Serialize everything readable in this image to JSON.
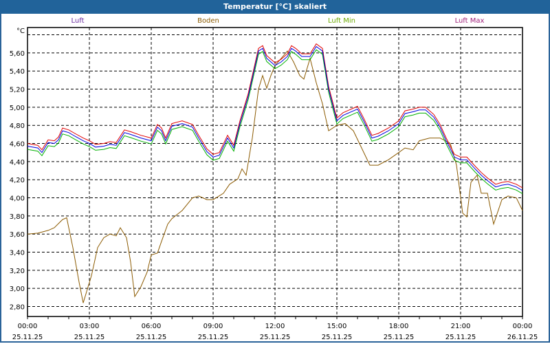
{
  "window": {
    "title": "Temperatur [°C] skaliert"
  },
  "chart_data": {
    "type": "line",
    "title": "Temperatur [°C] skaliert",
    "ylabel": "°C",
    "xlabel": "",
    "ylim": [
      2.69,
      5.88
    ],
    "xlim_hours": [
      0,
      24
    ],
    "grid": true,
    "legend_placement": "top",
    "yticks": [
      {
        "v": 2.8,
        "label": "2,80"
      },
      {
        "v": 3.0,
        "label": "3,00"
      },
      {
        "v": 3.2,
        "label": "3,20"
      },
      {
        "v": 3.4,
        "label": "3,40"
      },
      {
        "v": 3.6,
        "label": "3,60"
      },
      {
        "v": 3.8,
        "label": "3,80"
      },
      {
        "v": 4.0,
        "label": "4,00"
      },
      {
        "v": 4.2,
        "label": "4,20"
      },
      {
        "v": 4.4,
        "label": "4,40"
      },
      {
        "v": 4.6,
        "label": "4,60"
      },
      {
        "v": 4.8,
        "label": "4,80"
      },
      {
        "v": 5.0,
        "label": "5,00"
      },
      {
        "v": 5.2,
        "label": "5,20"
      },
      {
        "v": 5.4,
        "label": "5,40"
      },
      {
        "v": 5.6,
        "label": "5,60"
      },
      {
        "v": 5.8,
        "label": ""
      }
    ],
    "xticks": [
      {
        "h": 0,
        "time": "00:00",
        "date": "25.11.25"
      },
      {
        "h": 3,
        "time": "03:00",
        "date": "25.11.25"
      },
      {
        "h": 6,
        "time": "06:00",
        "date": "25.11.25"
      },
      {
        "h": 9,
        "time": "09:00",
        "date": "25.11.25"
      },
      {
        "h": 12,
        "time": "12:00",
        "date": "25.11.25"
      },
      {
        "h": 15,
        "time": "15:00",
        "date": "25.11.25"
      },
      {
        "h": 18,
        "time": "18:00",
        "date": "25.11.25"
      },
      {
        "h": 21,
        "time": "21:00",
        "date": "25.11.25"
      },
      {
        "h": 24,
        "time": "00:00",
        "date": "26.11.25"
      }
    ],
    "series": [
      {
        "name": "Boden",
        "color": "#8b5a00",
        "offset": 0,
        "x": [
          0,
          0.5,
          1,
          1.3,
          1.7,
          1.9,
          2.2,
          2.5,
          2.7,
          2.9,
          3.1,
          3.4,
          3.7,
          4,
          4.3,
          4.5,
          4.8,
          5,
          5.2,
          5.5,
          5.8,
          6,
          6.3,
          6.5,
          6.8,
          7,
          7.5,
          8,
          8.3,
          8.7,
          9,
          9.5,
          9.8,
          10.2,
          10.4,
          10.6,
          10.9,
          11.2,
          11.4,
          11.6,
          11.8,
          12,
          12.3,
          12.6,
          12.9,
          13.2,
          13.4,
          13.7,
          14,
          14.3,
          14.6,
          15,
          15.4,
          15.8,
          16.2,
          16.6,
          17,
          17.5,
          18,
          18.3,
          18.7,
          19,
          19.5,
          20,
          20.5,
          20.8,
          21.1,
          21.3,
          21.5,
          21.8,
          22,
          22.3,
          22.6,
          23,
          23.3,
          23.7,
          24
        ],
        "y": [
          3.6,
          3.61,
          3.64,
          3.67,
          3.76,
          3.78,
          3.45,
          3.07,
          2.84,
          2.99,
          3.14,
          3.45,
          3.56,
          3.6,
          3.58,
          3.67,
          3.56,
          3.29,
          2.91,
          3.02,
          3.18,
          3.37,
          3.39,
          3.52,
          3.71,
          3.77,
          3.86,
          4.0,
          4.02,
          3.98,
          3.98,
          4.05,
          4.15,
          4.21,
          4.32,
          4.25,
          4.66,
          5.2,
          5.35,
          5.21,
          5.35,
          5.46,
          5.54,
          5.62,
          5.5,
          5.35,
          5.31,
          5.54,
          5.27,
          5.04,
          4.74,
          4.8,
          4.82,
          4.74,
          4.55,
          4.36,
          4.36,
          4.42,
          4.5,
          4.55,
          4.53,
          4.63,
          4.66,
          4.66,
          4.6,
          4.36,
          3.83,
          3.79,
          4.17,
          4.25,
          4.05,
          4.05,
          3.71,
          3.98,
          4.02,
          4.0,
          3.86
        ]
      },
      {
        "name": "Luft Min",
        "color": "#00b000",
        "offset": -0.035
      },
      {
        "name": "Luft Max",
        "color": "#e00000",
        "offset": 0.03
      },
      {
        "name": "Luft",
        "color": "#0000e0",
        "offset": 0,
        "x": [
          0,
          0.5,
          0.7,
          1,
          1.3,
          1.5,
          1.7,
          2,
          2.3,
          2.7,
          3,
          3.3,
          3.7,
          4,
          4.3,
          4.7,
          5,
          5.5,
          6,
          6.3,
          6.5,
          6.7,
          7,
          7.5,
          8,
          8.3,
          8.7,
          9,
          9.3,
          9.7,
          10,
          10.3,
          10.7,
          11,
          11.2,
          11.4,
          11.6,
          12,
          12.3,
          12.6,
          12.8,
          13,
          13.3,
          13.7,
          14,
          14.3,
          14.6,
          15,
          15.3,
          15.7,
          16,
          16.3,
          16.7,
          17,
          17.5,
          18,
          18.3,
          18.7,
          19,
          19.3,
          19.7,
          20,
          20.3,
          20.7,
          21,
          21.3,
          21.7,
          22,
          22.3,
          22.7,
          23,
          23.3,
          23.7,
          24
        ],
        "y": [
          4.57,
          4.55,
          4.5,
          4.61,
          4.6,
          4.64,
          4.74,
          4.72,
          4.68,
          4.63,
          4.6,
          4.56,
          4.57,
          4.59,
          4.58,
          4.72,
          4.7,
          4.66,
          4.63,
          4.78,
          4.74,
          4.63,
          4.79,
          4.82,
          4.78,
          4.66,
          4.51,
          4.45,
          4.47,
          4.66,
          4.55,
          4.82,
          5.12,
          5.42,
          5.62,
          5.65,
          5.54,
          5.46,
          5.5,
          5.56,
          5.65,
          5.62,
          5.56,
          5.56,
          5.67,
          5.62,
          5.2,
          4.85,
          4.91,
          4.95,
          4.98,
          4.85,
          4.66,
          4.68,
          4.74,
          4.82,
          4.93,
          4.95,
          4.97,
          4.97,
          4.89,
          4.78,
          4.63,
          4.45,
          4.42,
          4.42,
          4.32,
          4.25,
          4.19,
          4.12,
          4.14,
          4.15,
          4.12,
          4.08
        ]
      }
    ],
    "legend": [
      {
        "label": "Luft",
        "color": "#6a2ca0"
      },
      {
        "label": "Boden",
        "color": "#8b5a00"
      },
      {
        "label": "Luft Min",
        "color": "#6aa800"
      },
      {
        "label": "Luft Max",
        "color": "#a0207a"
      }
    ]
  }
}
